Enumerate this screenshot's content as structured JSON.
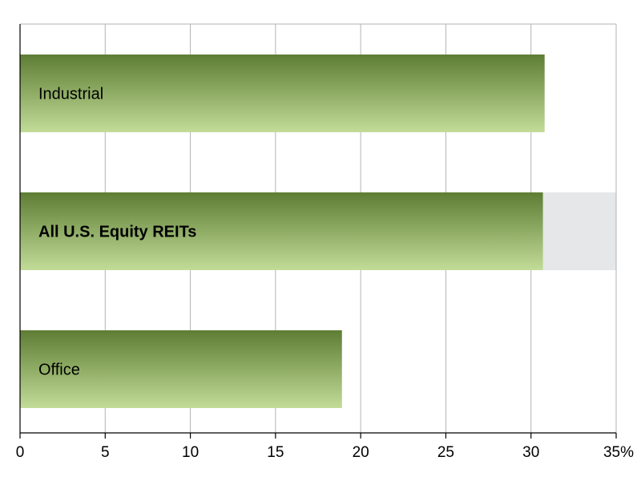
{
  "chart_data": {
    "type": "bar",
    "orientation": "horizontal",
    "categories": [
      "Industrial",
      "All U.S. Equity REITs",
      "Office"
    ],
    "values": [
      30.8,
      30.7,
      18.9
    ],
    "highlight_category": "All U.S. Equity REITs",
    "xlim": [
      0,
      35
    ],
    "xticks": [
      0,
      5,
      10,
      15,
      20,
      25,
      30,
      35
    ],
    "xtick_labels": [
      "0",
      "5",
      "10",
      "15",
      "20",
      "25",
      "30",
      "35%"
    ],
    "grid": "vertical",
    "colors": {
      "bar_top": "#5e7d34",
      "bar_bottom": "#c2dc98",
      "highlight_band": "#e6e7e8",
      "grid": "#b3b3b3",
      "axis": "#000000"
    }
  }
}
